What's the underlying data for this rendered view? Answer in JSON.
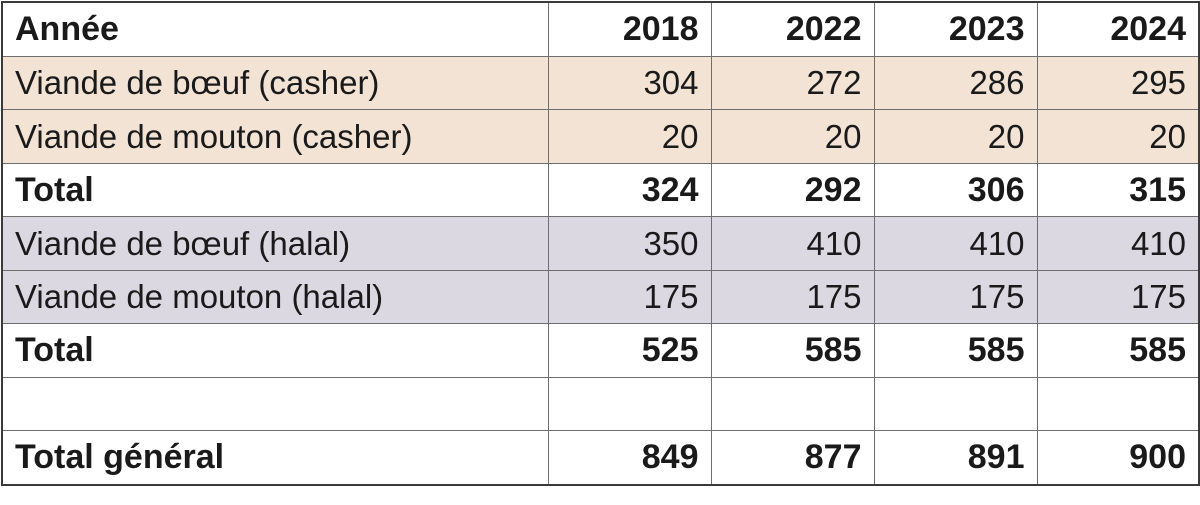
{
  "table": {
    "header": {
      "label": "Année",
      "years": [
        "2018",
        "2022",
        "2023",
        "2024"
      ]
    },
    "rows": [
      {
        "label": "Viande de bœuf (casher)",
        "values": [
          "304",
          "272",
          "286",
          "295"
        ],
        "group": "casher",
        "bold": false
      },
      {
        "label": "Viande de mouton (casher)",
        "values": [
          "20",
          "20",
          "20",
          "20"
        ],
        "group": "casher",
        "bold": false
      },
      {
        "label": "Total",
        "values": [
          "324",
          "292",
          "306",
          "315"
        ],
        "group": "total",
        "bold": true
      },
      {
        "label": "Viande de bœuf (halal)",
        "values": [
          "350",
          "410",
          "410",
          "410"
        ],
        "group": "halal",
        "bold": false
      },
      {
        "label": "Viande de mouton (halal)",
        "values": [
          "175",
          "175",
          "175",
          "175"
        ],
        "group": "halal",
        "bold": false
      },
      {
        "label": "Total",
        "values": [
          "525",
          "585",
          "585",
          "585"
        ],
        "group": "total",
        "bold": true
      },
      {
        "label": "",
        "values": [
          "",
          "",
          "",
          ""
        ],
        "group": "spacer",
        "bold": false
      },
      {
        "label": "Total général",
        "values": [
          "849",
          "877",
          "891",
          "900"
        ],
        "group": "grand-total",
        "bold": true
      }
    ],
    "colors": {
      "casher_row_bg": "#f3e3d5",
      "halal_row_bg": "#dcd8e1",
      "border": "#6e6e6e",
      "text": "#1a1a1a"
    }
  }
}
